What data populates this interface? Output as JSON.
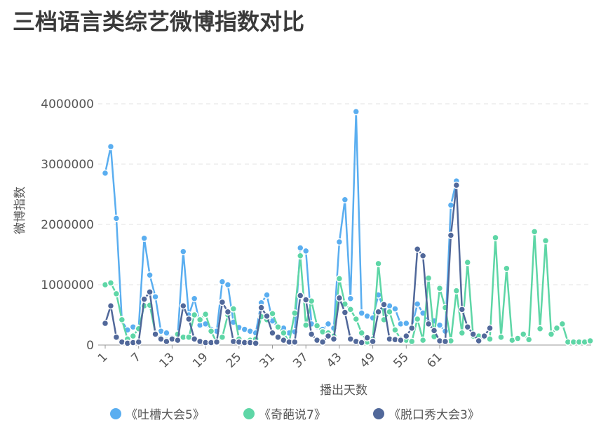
{
  "chart_data": {
    "type": "line",
    "title": "三档语言类综艺微博指数对比",
    "xlabel": "播出天数",
    "ylabel": "微博指数",
    "categories": [
      "1",
      null,
      null,
      null,
      null,
      null,
      "7",
      null,
      null,
      null,
      null,
      null,
      "13",
      null,
      null,
      null,
      null,
      null,
      "19",
      null,
      null,
      null,
      null,
      null,
      "25",
      null,
      null,
      null,
      null,
      null,
      "31",
      null,
      null,
      null,
      null,
      null,
      "37",
      null,
      null,
      null,
      null,
      null,
      "43",
      null,
      null,
      null,
      null,
      null,
      "49",
      null,
      null,
      null,
      null,
      null,
      "55",
      null,
      null,
      null,
      null,
      null,
      "61",
      null,
      null,
      null,
      null,
      null,
      null,
      null,
      null,
      null,
      null,
      null,
      null,
      null,
      null,
      null,
      null,
      null,
      null,
      null,
      null,
      null,
      null,
      null,
      null,
      null,
      null,
      null
    ],
    "ylim": [
      0,
      4000000
    ],
    "yticks": [
      0,
      1000000,
      2000000,
      3000000,
      4000000
    ],
    "grid": true,
    "legend": "bottom",
    "series": [
      {
        "name": "《吐槽大会5》",
        "color": "#5aaef0",
        "values": [
          2850000,
          3290000,
          2100000,
          400000,
          250000,
          300000,
          280000,
          1770000,
          1160000,
          800000,
          230000,
          200000,
          120000,
          150000,
          1550000,
          500000,
          770000,
          330000,
          350000,
          260000,
          230000,
          1050000,
          1000000,
          380000,
          290000,
          260000,
          230000,
          200000,
          700000,
          830000,
          400000,
          300000,
          280000,
          200000,
          220000,
          1610000,
          1560000,
          350000,
          300000,
          260000,
          350000,
          280000,
          1710000,
          2410000,
          770000,
          3870000,
          530000,
          480000,
          450000,
          830000,
          600000,
          650000,
          600000,
          350000,
          360000,
          300000,
          680000,
          530000,
          380000,
          400000,
          330000,
          230000,
          2320000,
          2720000,
          null,
          null,
          null,
          null,
          null,
          null,
          null,
          null,
          null,
          null,
          null,
          null,
          null,
          null,
          null,
          null,
          null,
          null,
          null,
          null,
          null,
          null,
          null,
          null
        ]
      },
      {
        "name": "《奇葩说7》",
        "color": "#5ed6a6",
        "values": [
          1000000,
          1030000,
          850000,
          420000,
          100000,
          150000,
          270000,
          650000,
          660000,
          200000,
          120000,
          80000,
          100000,
          180000,
          130000,
          130000,
          500000,
          420000,
          510000,
          230000,
          40000,
          130000,
          500000,
          600000,
          100000,
          60000,
          80000,
          100000,
          470000,
          420000,
          520000,
          300000,
          200000,
          50000,
          530000,
          1480000,
          330000,
          730000,
          320000,
          220000,
          200000,
          150000,
          1100000,
          680000,
          590000,
          430000,
          200000,
          50000,
          100000,
          1350000,
          420000,
          550000,
          250000,
          100000,
          80000,
          60000,
          430000,
          80000,
          1110000,
          140000,
          940000,
          620000,
          70000,
          900000,
          200000,
          1370000,
          150000,
          150000,
          130000,
          100000,
          1780000,
          130000,
          1270000,
          80000,
          110000,
          180000,
          90000,
          1880000,
          270000,
          1730000,
          180000,
          280000,
          350000,
          50000,
          50000,
          50000,
          50000,
          70000
        ]
      },
      {
        "name": "《脱口秀大会3》",
        "color": "#51689a",
        "values": [
          360000,
          650000,
          130000,
          50000,
          30000,
          40000,
          50000,
          760000,
          880000,
          180000,
          100000,
          60000,
          100000,
          80000,
          650000,
          430000,
          100000,
          60000,
          40000,
          40000,
          50000,
          710000,
          550000,
          60000,
          50000,
          40000,
          40000,
          30000,
          620000,
          480000,
          200000,
          130000,
          80000,
          50000,
          50000,
          820000,
          750000,
          180000,
          80000,
          50000,
          150000,
          100000,
          780000,
          540000,
          100000,
          60000,
          40000,
          120000,
          60000,
          550000,
          670000,
          100000,
          90000,
          80000,
          150000,
          280000,
          1590000,
          1480000,
          350000,
          240000,
          70000,
          60000,
          1820000,
          2650000,
          590000,
          300000,
          180000,
          70000,
          150000,
          280000,
          null,
          null,
          null,
          null,
          null,
          null,
          null,
          null,
          null,
          null,
          null,
          null,
          null,
          null,
          null,
          null,
          null,
          null
        ]
      }
    ]
  }
}
